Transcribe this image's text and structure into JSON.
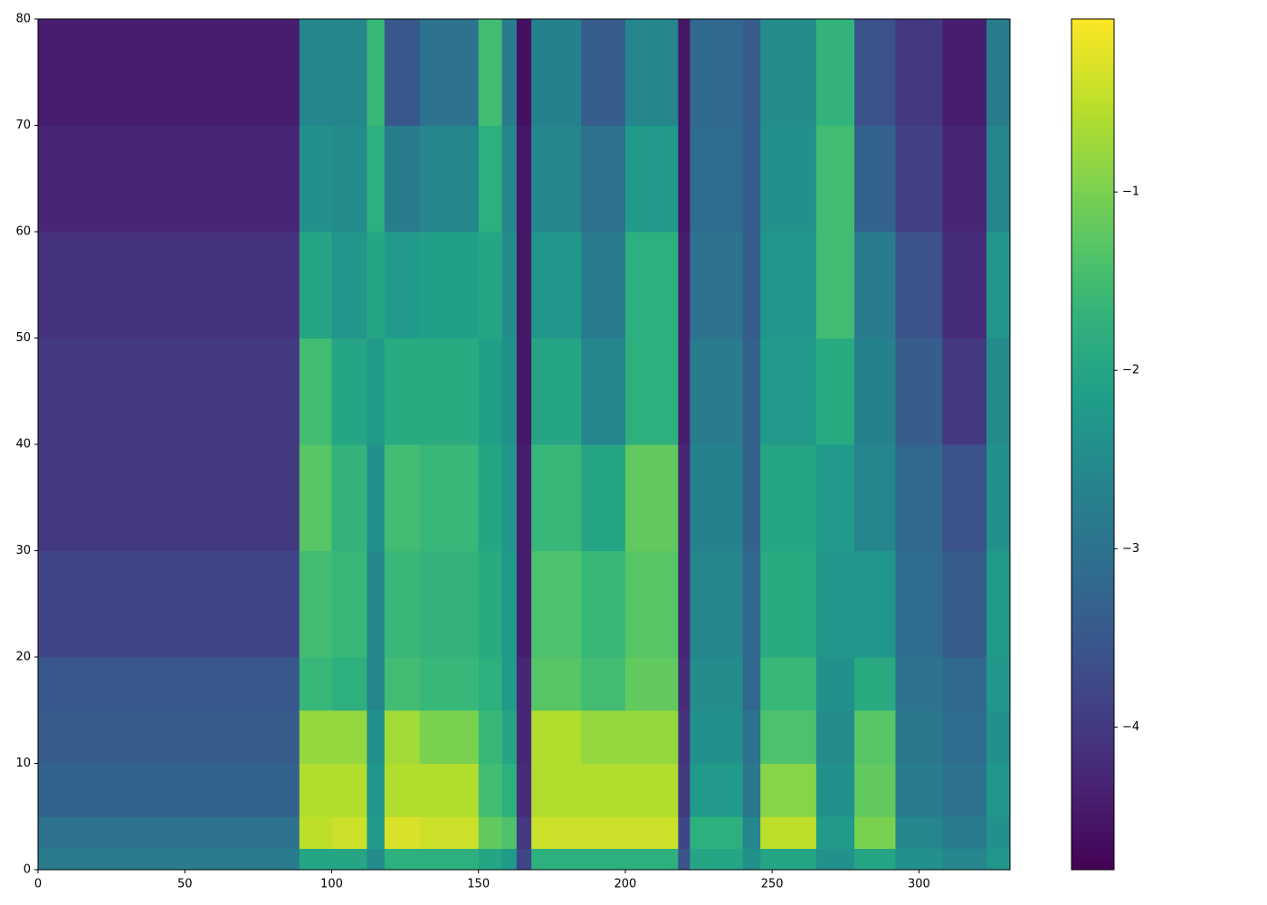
{
  "chart_data": {
    "type": "heatmap",
    "cmap": "viridis",
    "x_edges": [
      0,
      89,
      100,
      112,
      118,
      130,
      150,
      158,
      163,
      168,
      185,
      200,
      218,
      222,
      240,
      246,
      265,
      278,
      292,
      308,
      323,
      331
    ],
    "y_edges": [
      0,
      2,
      5,
      10,
      15,
      20,
      30,
      40,
      50,
      60,
      70,
      80
    ],
    "values": [
      [
        -2.8,
        -3.0,
        -3.3,
        -3.4,
        -3.5,
        -3.8,
        -4.0,
        -4.0,
        -4.1,
        -4.3,
        -4.4
      ],
      [
        -2.0,
        -0.5,
        -0.6,
        -0.8,
        -1.6,
        -1.5,
        -1.3,
        -1.5,
        -2.0,
        -2.4,
        -2.6
      ],
      [
        -2.0,
        -0.4,
        -0.6,
        -0.8,
        -1.8,
        -1.6,
        -1.7,
        -2.0,
        -2.3,
        -2.5,
        -2.6
      ],
      [
        -2.5,
        -2.2,
        -2.3,
        -2.4,
        -2.6,
        -2.6,
        -2.4,
        -2.2,
        -2.0,
        -1.8,
        -1.6
      ],
      [
        -1.8,
        -0.3,
        -0.6,
        -0.7,
        -1.5,
        -1.6,
        -1.5,
        -1.9,
        -2.2,
        -2.8,
        -3.5
      ],
      [
        -1.8,
        -0.4,
        -0.6,
        -1.0,
        -1.6,
        -1.7,
        -1.6,
        -1.9,
        -2.1,
        -2.6,
        -3.0
      ],
      [
        -2.0,
        -1.2,
        -1.5,
        -1.6,
        -1.8,
        -1.9,
        -2.0,
        -2.1,
        -2.0,
        -1.8,
        -1.5
      ],
      [
        -2.2,
        -1.4,
        -1.8,
        -2.0,
        -2.2,
        -2.2,
        -2.3,
        -2.4,
        -2.5,
        -2.6,
        -2.8
      ],
      [
        -3.8,
        -4.0,
        -4.2,
        -4.3,
        -4.3,
        -4.4,
        -4.4,
        -4.5,
        -4.5,
        -4.5,
        -4.6
      ],
      [
        -1.8,
        -0.4,
        -0.6,
        -0.6,
        -1.3,
        -1.4,
        -1.6,
        -2.0,
        -2.3,
        -2.6,
        -2.7
      ],
      [
        -1.8,
        -0.4,
        -0.6,
        -0.8,
        -1.5,
        -1.6,
        -2.0,
        -2.6,
        -2.8,
        -3.0,
        -3.4
      ],
      [
        -1.8,
        -0.4,
        -0.6,
        -0.8,
        -1.2,
        -1.3,
        -1.2,
        -1.8,
        -1.8,
        -2.2,
        -2.6
      ],
      [
        -3.6,
        -3.8,
        -4.0,
        -4.1,
        -4.2,
        -4.3,
        -4.3,
        -4.4,
        -4.4,
        -4.5,
        -4.5
      ],
      [
        -2.0,
        -1.8,
        -2.2,
        -2.4,
        -2.5,
        -2.6,
        -2.7,
        -2.8,
        -3.0,
        -3.1,
        -3.2
      ],
      [
        -2.4,
        -2.6,
        -2.9,
        -3.0,
        -3.2,
        -3.2,
        -3.3,
        -3.3,
        -3.4,
        -3.4,
        -3.4
      ],
      [
        -2.0,
        -0.5,
        -0.9,
        -1.4,
        -1.6,
        -1.9,
        -2.0,
        -2.2,
        -2.3,
        -2.4,
        -2.5
      ],
      [
        -2.4,
        -2.2,
        -2.4,
        -2.5,
        -2.4,
        -2.3,
        -2.2,
        -1.9,
        -1.5,
        -1.5,
        -1.7
      ],
      [
        -2.0,
        -1.0,
        -1.2,
        -1.3,
        -1.9,
        -2.3,
        -2.6,
        -2.7,
        -2.8,
        -3.3,
        -3.6
      ],
      [
        -2.4,
        -2.6,
        -2.8,
        -2.9,
        -3.0,
        -3.1,
        -3.2,
        -3.4,
        -3.6,
        -3.9,
        -4.0
      ],
      [
        -2.6,
        -2.8,
        -3.0,
        -3.1,
        -3.2,
        -3.4,
        -3.6,
        -4.0,
        -4.2,
        -4.3,
        -4.4
      ],
      [
        -2.3,
        -2.4,
        -2.3,
        -2.4,
        -2.3,
        -2.2,
        -2.4,
        -2.5,
        -2.3,
        -2.6,
        -2.8
      ]
    ],
    "xlim": [
      0,
      331
    ],
    "xticks": [
      0,
      50,
      100,
      150,
      200,
      250,
      300
    ],
    "ylim": [
      0,
      80
    ],
    "yticks": [
      0,
      10,
      20,
      30,
      40,
      50,
      60,
      70,
      80
    ],
    "clim": [
      -4.8,
      -0.03
    ],
    "cticks": [
      {
        "value": -4,
        "label": "−4"
      },
      {
        "value": -3,
        "label": "−3"
      },
      {
        "value": -2,
        "label": "−2"
      },
      {
        "value": -1,
        "label": "−1"
      }
    ]
  }
}
